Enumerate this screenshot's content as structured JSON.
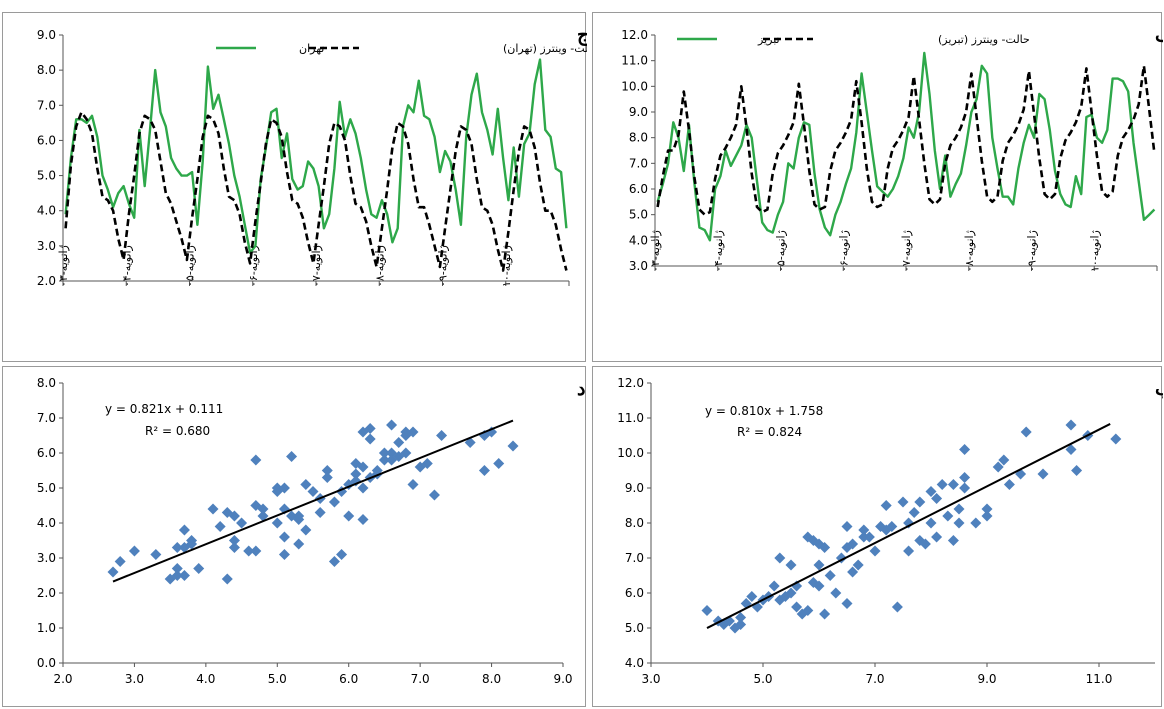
{
  "chart_data": [
    {
      "type": "line",
      "panel_label": "ج",
      "ylim": [
        2.0,
        9.0
      ],
      "yticks": [
        "2.0",
        "3.0",
        "4.0",
        "5.0",
        "6.0",
        "7.0",
        "8.0",
        "9.0"
      ],
      "xticks": [
        "ژانویه-۰۳",
        "ژانویه-۰۴",
        "ژانویه-۰۵",
        "ژانویه-۰۶",
        "ژانویه-۰۷",
        "ژانویه-۰۸",
        "ژانویه-۰۹",
        "ژانویه-۱۰"
      ],
      "x_start_month": 0,
      "x_months": 96,
      "legend_position": "top",
      "series": [
        {
          "name": "تهران",
          "style": "solid",
          "color": "#2ea84a",
          "values": [
            3.9,
            5.5,
            6.6,
            6.6,
            6.5,
            6.7,
            6.1,
            5.0,
            4.6,
            4.1,
            4.5,
            4.7,
            4.2,
            3.8,
            6.3,
            4.7,
            6.3,
            8.0,
            6.8,
            6.4,
            5.5,
            5.2,
            5.0,
            5.0,
            5.1,
            3.6,
            5.4,
            8.1,
            6.9,
            7.3,
            6.6,
            5.9,
            5.0,
            4.4,
            3.6,
            2.8,
            3.0,
            4.9,
            5.8,
            6.8,
            6.9,
            5.5,
            6.2,
            4.9,
            4.6,
            4.7,
            5.4,
            5.2,
            4.7,
            3.5,
            3.9,
            5.2,
            7.1,
            6.1,
            6.6,
            6.2,
            5.5,
            4.6,
            3.9,
            3.8,
            4.3,
            3.9,
            3.1,
            3.5,
            6.4,
            7.0,
            6.8,
            7.7,
            6.7,
            6.6,
            6.1,
            5.1,
            5.7,
            5.4,
            4.6,
            3.6,
            6.1,
            7.3,
            7.9,
            6.8,
            6.3,
            5.6,
            6.9,
            5.5,
            4.3,
            5.8,
            4.4,
            5.9,
            6.2,
            7.6,
            8.3,
            6.3,
            6.1,
            5.2,
            5.1,
            3.5
          ]
        },
        {
          "name": "حالت- وینترز (تهران)",
          "style": "dashed",
          "color": "#000000",
          "values": [
            3.5,
            5.3,
            6.4,
            6.8,
            6.6,
            6.2,
            5.2,
            4.4,
            4.3,
            4.0,
            3.2,
            2.6,
            3.9,
            5.0,
            6.2,
            6.7,
            6.6,
            6.3,
            5.4,
            4.5,
            4.2,
            3.7,
            3.2,
            2.6,
            3.8,
            4.9,
            6.1,
            6.7,
            6.6,
            6.2,
            5.2,
            4.4,
            4.3,
            3.9,
            3.1,
            2.5,
            3.7,
            4.8,
            5.9,
            6.6,
            6.5,
            6.1,
            5.1,
            4.3,
            4.2,
            3.8,
            3.1,
            2.5,
            3.6,
            4.7,
            5.9,
            6.5,
            6.4,
            6.0,
            5.0,
            4.2,
            4.1,
            3.7,
            3.0,
            2.4,
            3.5,
            4.6,
            5.8,
            6.5,
            6.4,
            5.9,
            4.9,
            4.1,
            4.1,
            3.6,
            3.0,
            2.4,
            3.5,
            4.6,
            5.7,
            6.4,
            6.3,
            5.9,
            4.9,
            4.1,
            4.0,
            3.6,
            2.9,
            2.3,
            3.4,
            4.6,
            5.7,
            6.4,
            6.3,
            5.8,
            4.8,
            4.0,
            4.0,
            3.6,
            2.9,
            2.3
          ]
        }
      ]
    },
    {
      "type": "line",
      "panel_label": "الف",
      "ylim": [
        3.0,
        12.0
      ],
      "yticks": [
        "3.0",
        "4.0",
        "5.0",
        "6.0",
        "7.0",
        "8.0",
        "9.0",
        "10.0",
        "11.0",
        "12.0"
      ],
      "xticks": [
        "ژانویه-۰۳",
        "ژانویه-۰۴",
        "ژانویه-۰۵",
        "ژانویه-۰۶",
        "ژانویه-۰۷",
        "ژانویه-۰۸",
        "ژانویه-۰۹",
        "ژانویه-۱۰"
      ],
      "x_start_month": 0,
      "x_months": 96,
      "legend_position": "top",
      "series": [
        {
          "name": "تبریز",
          "style": "solid",
          "color": "#2ea84a",
          "values": [
            5.5,
            6.2,
            7.0,
            8.6,
            8.0,
            6.7,
            8.5,
            6.3,
            4.5,
            4.4,
            4.0,
            6.0,
            6.5,
            7.5,
            6.9,
            7.3,
            7.7,
            8.5,
            8.0,
            6.3,
            4.7,
            4.4,
            4.3,
            5.0,
            5.5,
            7.0,
            6.8,
            8.0,
            8.6,
            8.5,
            6.6,
            5.2,
            4.5,
            4.2,
            5.0,
            5.5,
            6.2,
            6.8,
            8.2,
            10.5,
            9.0,
            7.5,
            6.1,
            5.9,
            5.7,
            6.0,
            6.5,
            7.2,
            8.4,
            8.0,
            9.0,
            11.3,
            9.7,
            7.5,
            6.0,
            7.3,
            5.7,
            6.2,
            6.6,
            7.7,
            9.0,
            9.5,
            10.8,
            10.5,
            8.0,
            6.8,
            5.7,
            5.7,
            5.4,
            6.8,
            7.8,
            8.5,
            8.0,
            9.7,
            9.5,
            8.3,
            6.7,
            5.8,
            5.4,
            5.3,
            6.5,
            5.8,
            8.8,
            8.9,
            8.0,
            7.8,
            8.3,
            10.3,
            10.3,
            10.2,
            9.8,
            7.8,
            6.3,
            4.8,
            5.0,
            5.2
          ]
        },
        {
          "name": "حالت- وینترز (تبریز)",
          "style": "dashed",
          "color": "#000000",
          "values": [
            5.3,
            6.5,
            7.5,
            7.5,
            8.1,
            9.8,
            8.3,
            6.5,
            5.2,
            5.0,
            5.1,
            6.4,
            7.3,
            7.6,
            8.0,
            8.5,
            10.0,
            8.4,
            6.6,
            5.3,
            5.1,
            5.2,
            6.6,
            7.4,
            7.7,
            8.1,
            8.6,
            10.1,
            8.5,
            6.7,
            5.4,
            5.2,
            5.3,
            6.7,
            7.5,
            7.8,
            8.2,
            8.7,
            10.2,
            8.6,
            6.8,
            5.5,
            5.3,
            5.4,
            6.8,
            7.6,
            7.9,
            8.3,
            8.8,
            10.4,
            8.7,
            7.0,
            5.6,
            5.4,
            5.6,
            7.0,
            7.7,
            8.0,
            8.4,
            9.0,
            10.5,
            8.8,
            7.1,
            5.7,
            5.5,
            5.7,
            7.1,
            7.8,
            8.1,
            8.5,
            9.1,
            10.6,
            8.9,
            7.2,
            5.8,
            5.6,
            5.8,
            7.2,
            7.9,
            8.2,
            8.6,
            9.2,
            10.7,
            9.0,
            7.3,
            5.9,
            5.7,
            5.9,
            7.3,
            8.0,
            8.3,
            8.7,
            9.3,
            10.8,
            9.1,
            7.4
          ]
        }
      ]
    },
    {
      "type": "scatter",
      "panel_label": "د",
      "xlim": [
        2.0,
        9.0
      ],
      "ylim": [
        0.0,
        8.0
      ],
      "xticks": [
        "2.0",
        "3.0",
        "4.0",
        "5.0",
        "6.0",
        "7.0",
        "8.0",
        "9.0"
      ],
      "yticks": [
        "0.0",
        "1.0",
        "2.0",
        "3.0",
        "4.0",
        "5.0",
        "6.0",
        "7.0",
        "8.0"
      ],
      "equation": "y = 0.821x + 0.111",
      "r2": "R² = 0.680",
      "trendline": {
        "slope": 0.821,
        "intercept": 0.111,
        "x_from": 2.7,
        "x_to": 8.3
      },
      "marker_color": "#4f81bd",
      "points": [
        [
          2.7,
          2.6
        ],
        [
          2.8,
          2.9
        ],
        [
          3.0,
          3.2
        ],
        [
          3.3,
          3.1
        ],
        [
          3.5,
          2.4
        ],
        [
          3.6,
          2.5
        ],
        [
          3.6,
          2.7
        ],
        [
          3.7,
          3.3
        ],
        [
          3.7,
          3.8
        ],
        [
          3.7,
          2.5
        ],
        [
          3.8,
          3.5
        ],
        [
          3.8,
          3.4
        ],
        [
          3.9,
          2.7
        ],
        [
          4.1,
          4.4
        ],
        [
          4.2,
          3.9
        ],
        [
          4.3,
          2.4
        ],
        [
          4.3,
          4.3
        ],
        [
          4.4,
          3.5
        ],
        [
          4.4,
          4.2
        ],
        [
          4.5,
          4.0
        ],
        [
          4.6,
          3.2
        ],
        [
          4.7,
          5.8
        ],
        [
          4.7,
          3.2
        ],
        [
          4.7,
          4.5
        ],
        [
          4.8,
          4.4
        ],
        [
          4.8,
          4.2
        ],
        [
          5.0,
          4.0
        ],
        [
          5.0,
          4.9
        ],
        [
          5.0,
          5.0
        ],
        [
          5.1,
          3.1
        ],
        [
          5.1,
          4.4
        ],
        [
          5.1,
          3.6
        ],
        [
          5.2,
          4.2
        ],
        [
          5.2,
          5.9
        ],
        [
          5.3,
          4.1
        ],
        [
          5.3,
          4.2
        ],
        [
          5.3,
          3.4
        ],
        [
          5.4,
          3.8
        ],
        [
          5.4,
          5.1
        ],
        [
          5.5,
          4.9
        ],
        [
          5.6,
          4.3
        ],
        [
          5.6,
          4.7
        ],
        [
          5.7,
          5.3
        ],
        [
          5.7,
          5.5
        ],
        [
          5.8,
          2.9
        ],
        [
          5.8,
          4.6
        ],
        [
          5.9,
          3.1
        ],
        [
          5.9,
          4.9
        ],
        [
          6.0,
          4.2
        ],
        [
          6.0,
          5.1
        ],
        [
          6.1,
          5.4
        ],
        [
          6.1,
          5.7
        ],
        [
          6.1,
          5.2
        ],
        [
          6.2,
          4.1
        ],
        [
          6.2,
          5.0
        ],
        [
          6.2,
          5.6
        ],
        [
          6.2,
          6.6
        ],
        [
          6.3,
          6.4
        ],
        [
          6.3,
          6.7
        ],
        [
          6.3,
          5.3
        ],
        [
          6.4,
          5.4
        ],
        [
          6.4,
          5.5
        ],
        [
          6.5,
          5.8
        ],
        [
          6.5,
          6.0
        ],
        [
          6.6,
          6.8
        ],
        [
          6.6,
          6.0
        ],
        [
          6.6,
          5.8
        ],
        [
          6.7,
          6.3
        ],
        [
          6.7,
          5.9
        ],
        [
          6.8,
          6.5
        ],
        [
          6.8,
          6.0
        ],
        [
          6.9,
          6.6
        ],
        [
          6.9,
          5.1
        ],
        [
          7.0,
          5.6
        ],
        [
          7.1,
          5.7
        ],
        [
          7.2,
          4.8
        ],
        [
          7.3,
          6.5
        ],
        [
          7.7,
          6.3
        ],
        [
          7.9,
          5.5
        ],
        [
          7.9,
          6.5
        ],
        [
          8.0,
          6.6
        ],
        [
          8.1,
          5.7
        ],
        [
          8.3,
          6.2
        ],
        [
          6.8,
          6.6
        ],
        [
          5.1,
          5.0
        ],
        [
          4.4,
          3.3
        ],
        [
          3.6,
          3.3
        ]
      ]
    },
    {
      "type": "scatter",
      "panel_label": "ب",
      "xlim": [
        3.0,
        12.0
      ],
      "ylim": [
        4.0,
        12.0
      ],
      "xticks": [
        "3.0",
        "5.0",
        "7.0",
        "9.0",
        "11.0"
      ],
      "yticks": [
        "4.0",
        "5.0",
        "6.0",
        "7.0",
        "8.0",
        "9.0",
        "10.0",
        "11.0",
        "12.0"
      ],
      "equation": "y = 0.810x + 1.758",
      "r2": "R² = 0.824",
      "trendline": {
        "slope": 0.81,
        "intercept": 1.758,
        "x_from": 4.0,
        "x_to": 11.2
      },
      "marker_color": "#4f81bd",
      "points": [
        [
          4.0,
          5.5
        ],
        [
          4.2,
          5.2
        ],
        [
          4.3,
          5.1
        ],
        [
          4.4,
          5.2
        ],
        [
          4.5,
          5.0
        ],
        [
          4.6,
          5.1
        ],
        [
          4.6,
          5.3
        ],
        [
          4.7,
          5.7
        ],
        [
          4.8,
          5.9
        ],
        [
          5.0,
          5.8
        ],
        [
          5.1,
          5.9
        ],
        [
          5.2,
          6.2
        ],
        [
          5.3,
          5.8
        ],
        [
          5.3,
          7.0
        ],
        [
          5.4,
          5.9
        ],
        [
          5.5,
          6.8
        ],
        [
          5.5,
          6.0
        ],
        [
          5.6,
          5.6
        ],
        [
          5.7,
          5.4
        ],
        [
          5.8,
          7.6
        ],
        [
          5.8,
          5.5
        ],
        [
          5.9,
          6.3
        ],
        [
          5.9,
          7.5
        ],
        [
          6.0,
          6.2
        ],
        [
          6.0,
          6.8
        ],
        [
          6.0,
          7.4
        ],
        [
          6.1,
          5.4
        ],
        [
          6.1,
          7.3
        ],
        [
          6.2,
          6.5
        ],
        [
          6.3,
          6.0
        ],
        [
          6.4,
          7.0
        ],
        [
          6.5,
          5.7
        ],
        [
          6.5,
          7.3
        ],
        [
          6.5,
          7.9
        ],
        [
          6.6,
          6.6
        ],
        [
          6.7,
          6.8
        ],
        [
          6.8,
          7.6
        ],
        [
          6.8,
          7.8
        ],
        [
          6.9,
          7.6
        ],
        [
          7.0,
          7.2
        ],
        [
          7.1,
          7.9
        ],
        [
          7.2,
          8.5
        ],
        [
          7.3,
          7.9
        ],
        [
          7.4,
          5.6
        ],
        [
          7.5,
          8.6
        ],
        [
          7.6,
          7.2
        ],
        [
          7.6,
          8.0
        ],
        [
          7.7,
          8.3
        ],
        [
          7.8,
          7.5
        ],
        [
          7.8,
          8.6
        ],
        [
          7.9,
          7.4
        ],
        [
          8.0,
          8.0
        ],
        [
          8.1,
          7.6
        ],
        [
          8.1,
          8.7
        ],
        [
          8.2,
          9.1
        ],
        [
          8.3,
          8.2
        ],
        [
          8.4,
          7.5
        ],
        [
          8.5,
          8.0
        ],
        [
          8.5,
          8.4
        ],
        [
          8.6,
          9.3
        ],
        [
          8.6,
          9.0
        ],
        [
          8.6,
          10.1
        ],
        [
          8.8,
          8.0
        ],
        [
          9.0,
          8.4
        ],
        [
          9.0,
          8.2
        ],
        [
          9.2,
          9.6
        ],
        [
          9.3,
          9.8
        ],
        [
          9.4,
          9.1
        ],
        [
          9.6,
          9.4
        ],
        [
          9.7,
          10.6
        ],
        [
          10.0,
          9.4
        ],
        [
          10.5,
          10.8
        ],
        [
          10.5,
          10.1
        ],
        [
          10.6,
          9.5
        ],
        [
          10.8,
          10.5
        ],
        [
          11.3,
          10.4
        ],
        [
          8.4,
          9.1
        ],
        [
          6.6,
          7.4
        ],
        [
          5.6,
          6.2
        ],
        [
          4.9,
          5.6
        ],
        [
          7.2,
          7.8
        ],
        [
          8.0,
          8.9
        ]
      ]
    }
  ]
}
